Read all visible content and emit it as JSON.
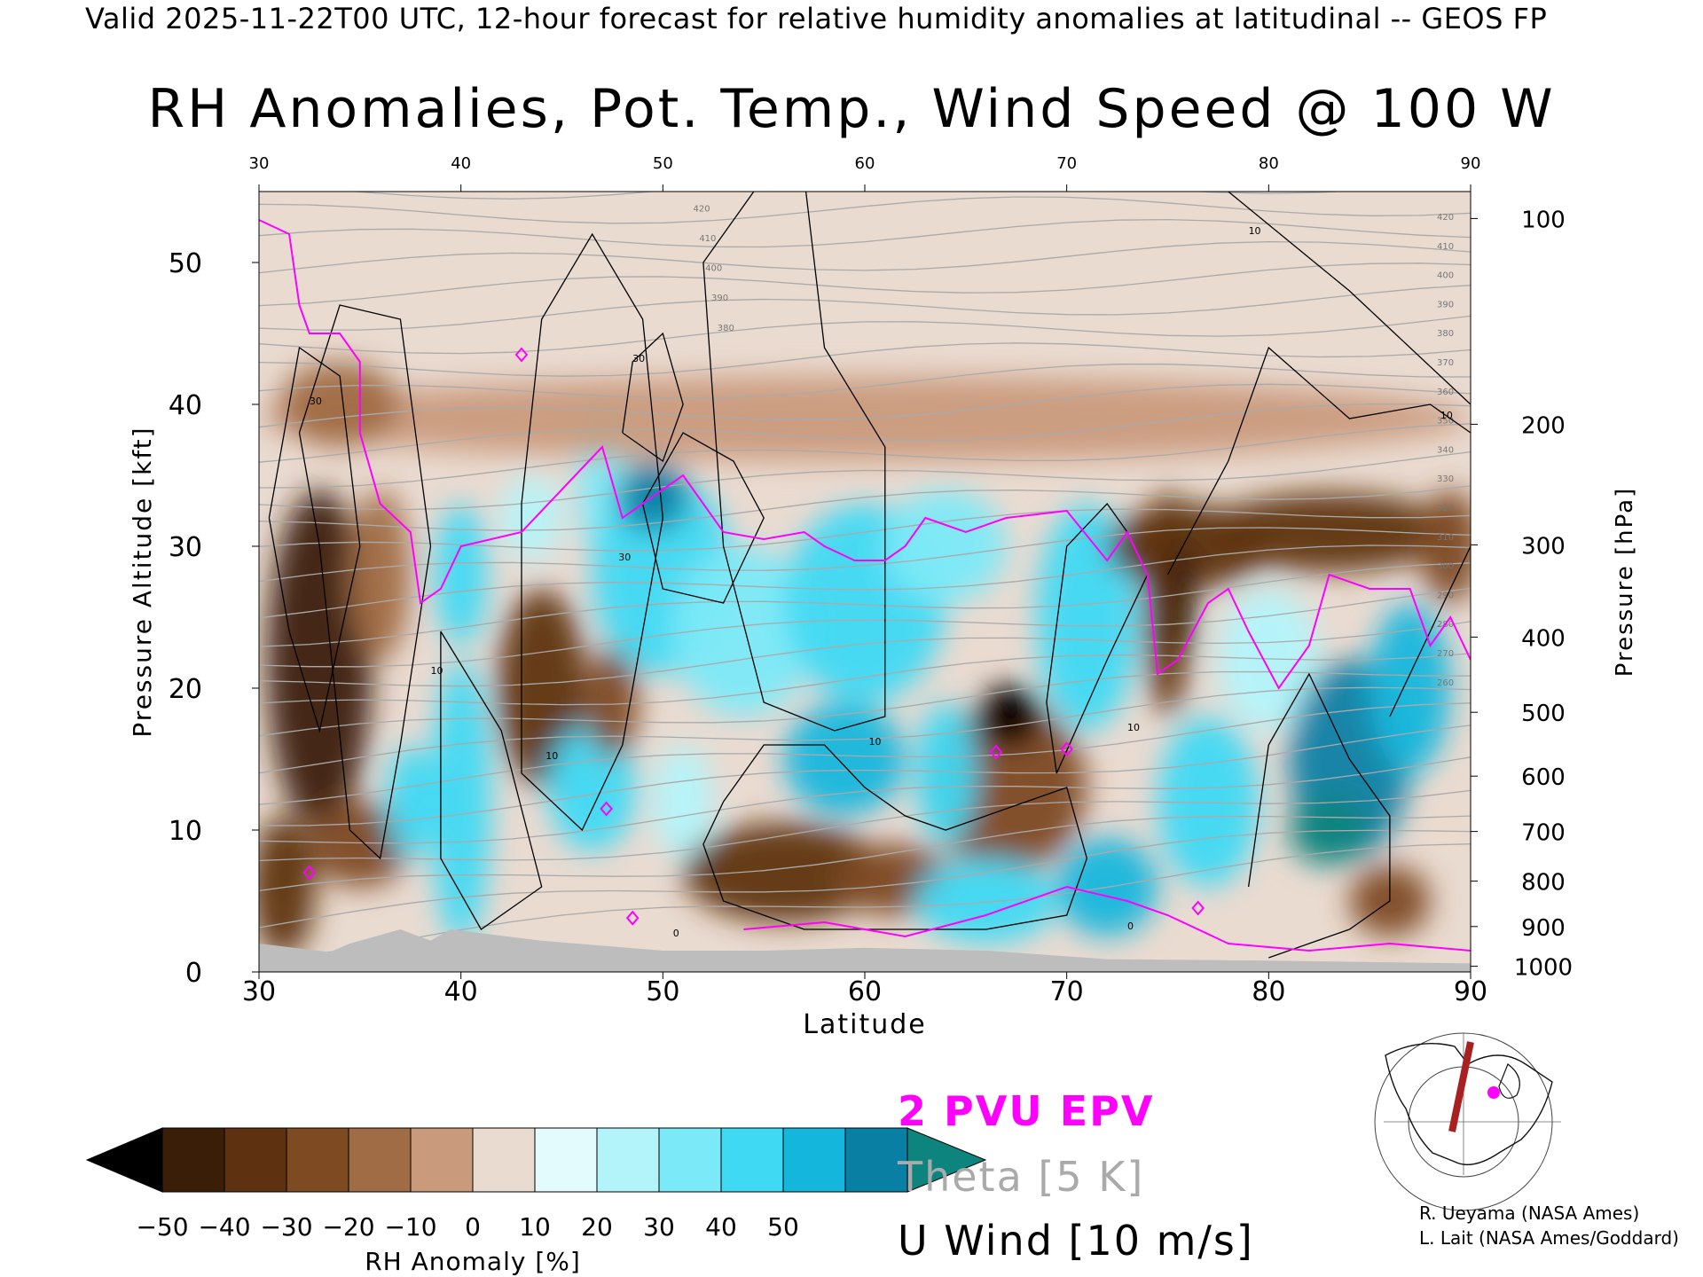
{
  "header": "Valid 2025-11-22T00 UTC, 12-hour forecast for relative humidity anomalies at latitudinal -- GEOS FP",
  "colors": {
    "epv": "#ff00ff",
    "theta": "#aaaaaa",
    "wind": "#000000",
    "ground": "#bdbdbd"
  },
  "chart_data": {
    "type": "heatmap",
    "title": "RH Anomalies, Pot. Temp., Wind Speed @ 100 W",
    "xlabel": "Latitude",
    "ylabel_left": "Pressure Altitude [kft]",
    "ylabel_right": "Pressure [hPa]",
    "xlim": [
      30,
      90
    ],
    "ylim": [
      0,
      55
    ],
    "x_ticks": [
      30,
      40,
      50,
      60,
      70,
      80,
      90
    ],
    "y_ticks": [
      0,
      10,
      20,
      30,
      40,
      50
    ],
    "pressure_ticks": [
      {
        "label": "100",
        "kft": 53.1
      },
      {
        "label": "200",
        "kft": 38.6
      },
      {
        "label": "300",
        "kft": 30.1
      },
      {
        "label": "400",
        "kft": 23.6
      },
      {
        "label": "500",
        "kft": 18.3
      },
      {
        "label": "600",
        "kft": 13.8
      },
      {
        "label": "700",
        "kft": 9.9
      },
      {
        "label": "800",
        "kft": 6.4
      },
      {
        "label": "900",
        "kft": 3.2
      },
      {
        "label": "1000",
        "kft": 0.4
      }
    ],
    "colorbar": {
      "label": "RH Anomaly [%]",
      "ticks": [
        "-50",
        "-40",
        "-30",
        "-20",
        "-10",
        "0",
        "10",
        "20",
        "30",
        "40",
        "50"
      ],
      "colors": [
        "#000000",
        "#3b1e08",
        "#5e3210",
        "#7d4a22",
        "#a06c45",
        "#c99a7c",
        "#eadbd1",
        "#e3fbfc",
        "#b3f4fb",
        "#7ce9f8",
        "#3fd9f3",
        "#14b6dc",
        "#0a7fa4",
        "#0d847e"
      ]
    },
    "rh_blobs": [
      {
        "x": 33,
        "y": 22,
        "rx": 2.6,
        "ry": 12,
        "v": -45
      },
      {
        "x": 31.2,
        "y": 6,
        "rx": 1.6,
        "ry": 5,
        "v": -40
      },
      {
        "x": 35,
        "y": 9,
        "rx": 2.5,
        "ry": 3,
        "v": -30
      },
      {
        "x": 36,
        "y": 28,
        "rx": 1.5,
        "ry": 6,
        "v": -25
      },
      {
        "x": 37.5,
        "y": 12,
        "rx": 1.2,
        "ry": 4,
        "v": 25
      },
      {
        "x": 40,
        "y": 12,
        "rx": 1.5,
        "ry": 10,
        "v": 30
      },
      {
        "x": 40,
        "y": 28,
        "rx": 1.3,
        "ry": 5,
        "v": 25
      },
      {
        "x": 44,
        "y": 20,
        "rx": 2.2,
        "ry": 7,
        "v": -35
      },
      {
        "x": 43.5,
        "y": 32,
        "rx": 1.5,
        "ry": 3,
        "v": 10
      },
      {
        "x": 46.5,
        "y": 13,
        "rx": 2.2,
        "ry": 4.5,
        "v": 30
      },
      {
        "x": 47.5,
        "y": 19,
        "rx": 1.3,
        "ry": 4,
        "v": -30
      },
      {
        "x": 47,
        "y": 35,
        "rx": 1.2,
        "ry": 6,
        "v": 20
      },
      {
        "x": 50,
        "y": 28,
        "rx": 3.5,
        "ry": 7,
        "v": 30
      },
      {
        "x": 49.5,
        "y": 33.5,
        "rx": 1.8,
        "ry": 2.5,
        "v": 45
      },
      {
        "x": 51,
        "y": 12,
        "rx": 1.5,
        "ry": 4,
        "v": 15
      },
      {
        "x": 54,
        "y": 24,
        "rx": 3.5,
        "ry": 6,
        "v": 20
      },
      {
        "x": 56,
        "y": 7,
        "rx": 5,
        "ry": 3.5,
        "v": -40
      },
      {
        "x": 61.5,
        "y": 6.5,
        "rx": 3,
        "ry": 2.5,
        "v": -30
      },
      {
        "x": 59,
        "y": 15,
        "rx": 3,
        "ry": 4,
        "v": 40
      },
      {
        "x": 60,
        "y": 26,
        "rx": 4,
        "ry": 7,
        "v": 25
      },
      {
        "x": 64,
        "y": 30,
        "rx": 3,
        "ry": 4,
        "v": 20
      },
      {
        "x": 67,
        "y": 13,
        "rx": 4,
        "ry": 6,
        "v": -30
      },
      {
        "x": 67.2,
        "y": 18,
        "rx": 1.6,
        "ry": 2.2,
        "v": -55
      },
      {
        "x": 66,
        "y": 5,
        "rx": 3.5,
        "ry": 3,
        "v": 30
      },
      {
        "x": 64,
        "y": 14,
        "rx": 1.5,
        "ry": 5,
        "v": 30
      },
      {
        "x": 72,
        "y": 6,
        "rx": 2.5,
        "ry": 3.5,
        "v": 40
      },
      {
        "x": 71,
        "y": 25,
        "rx": 2.5,
        "ry": 8,
        "v": 25
      },
      {
        "x": 76,
        "y": 30,
        "rx": 4,
        "ry": 3,
        "v": -40
      },
      {
        "x": 75,
        "y": 26,
        "rx": 1.2,
        "ry": 8,
        "v": -40
      },
      {
        "x": 75.8,
        "y": 26,
        "rx": 0.5,
        "ry": 4,
        "v": -55
      },
      {
        "x": 83,
        "y": 31,
        "rx": 6,
        "ry": 2.8,
        "v": -35
      },
      {
        "x": 80,
        "y": 22,
        "rx": 2.5,
        "ry": 5,
        "v": 15
      },
      {
        "x": 84,
        "y": 15,
        "rx": 3,
        "ry": 7,
        "v": 45
      },
      {
        "x": 83,
        "y": 10,
        "rx": 2,
        "ry": 2.5,
        "v": 55
      },
      {
        "x": 87,
        "y": 20,
        "rx": 2,
        "ry": 6,
        "v": 35
      },
      {
        "x": 77,
        "y": 12,
        "rx": 2.5,
        "ry": 6,
        "v": 25
      },
      {
        "x": 86,
        "y": 5,
        "rx": 2,
        "ry": 2.5,
        "v": -30
      },
      {
        "x": 89,
        "y": 30,
        "rx": 1.5,
        "ry": 4,
        "v": -30
      },
      {
        "x": 60,
        "y": 39,
        "rx": 30,
        "ry": 3,
        "v": -15
      },
      {
        "x": 34,
        "y": 40,
        "rx": 3,
        "ry": 3,
        "v": -20
      }
    ],
    "theta_labels": [
      "420",
      "410",
      "400",
      "390",
      "380",
      "370",
      "360",
      "350",
      "340",
      "330",
      "320",
      "310",
      "300",
      "290",
      "280",
      "270",
      "260"
    ],
    "wind_labels": [
      "10",
      "30",
      "0"
    ],
    "ground_kft": [
      [
        30,
        2.0
      ],
      [
        33.5,
        1.4
      ],
      [
        34.5,
        2.0
      ],
      [
        37,
        3.0
      ],
      [
        38.5,
        2.2
      ],
      [
        39.5,
        3.0
      ],
      [
        44,
        2.2
      ],
      [
        50,
        1.5
      ],
      [
        55,
        1.5
      ],
      [
        60,
        1.7
      ],
      [
        66,
        1.5
      ],
      [
        72,
        0.9
      ],
      [
        80,
        0.8
      ],
      [
        90,
        0.6
      ]
    ]
  },
  "legend": {
    "epv": "2 PVU EPV",
    "theta": "Theta [5 K]",
    "wind": "U Wind [10 m/s]"
  },
  "credits": [
    "R. Ueyama (NASA Ames)",
    "L. Lait (NASA Ames/Goddard)"
  ]
}
